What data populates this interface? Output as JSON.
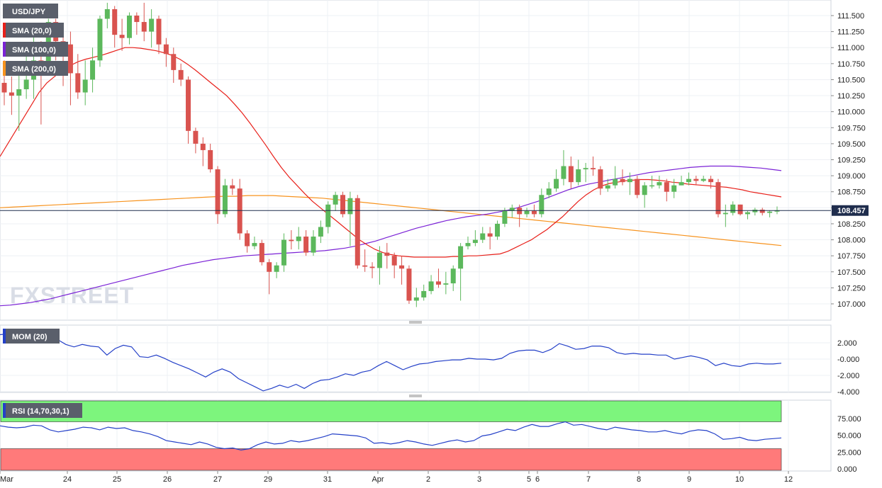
{
  "chart_data": [
    {
      "type": "candlestick",
      "title": "USD/JPY",
      "indicators": [
        "SMA (20,0)",
        "SMA (100,0)",
        "SMA (200,0)"
      ],
      "colors": {
        "up": "#5cb85c",
        "down": "#d9534f",
        "sma20": "#e8201a",
        "sma100": "#7b22d6",
        "sma200": "#f7931e",
        "price_line": "#1f2d4d"
      },
      "ylim": [
        106.85,
        111.65
      ],
      "yticks": [
        "111.500",
        "111.250",
        "111.000",
        "110.750",
        "110.500",
        "110.250",
        "110.000",
        "109.750",
        "109.500",
        "109.250",
        "109.000",
        "108.750",
        "108.500",
        "108.250",
        "108.000",
        "107.750",
        "107.500",
        "107.250",
        "107.000"
      ],
      "last_price": "108.457",
      "candles": [
        [
          110.45,
          110.3,
          110.8,
          110.1
        ],
        [
          110.3,
          110.25,
          110.55,
          109.95
        ],
        [
          110.25,
          110.35,
          110.7,
          109.7
        ],
        [
          110.35,
          110.5,
          110.9,
          110.2
        ],
        [
          110.5,
          110.8,
          111.2,
          110.2
        ],
        [
          110.8,
          110.75,
          111.1,
          109.8
        ],
        [
          110.75,
          111.4,
          111.45,
          110.6
        ],
        [
          111.4,
          111.1,
          111.45,
          110.8
        ],
        [
          111.1,
          111.05,
          111.35,
          110.4
        ],
        [
          111.05,
          110.6,
          111.25,
          110.1
        ],
        [
          110.6,
          110.3,
          110.9,
          110.2
        ],
        [
          110.3,
          110.5,
          110.8,
          110.1
        ],
        [
          110.5,
          110.8,
          111.0,
          110.3
        ],
        [
          110.8,
          111.45,
          111.5,
          110.7
        ],
        [
          111.45,
          111.6,
          111.7,
          111.3
        ],
        [
          111.6,
          111.2,
          111.65,
          111.0
        ],
        [
          111.2,
          111.15,
          111.45,
          110.95
        ],
        [
          111.15,
          111.5,
          111.55,
          111.05
        ],
        [
          111.5,
          111.4,
          111.55,
          111.2
        ],
        [
          111.4,
          111.25,
          111.7,
          111.1
        ],
        [
          111.25,
          111.45,
          111.6,
          111.0
        ],
        [
          111.45,
          111.05,
          111.5,
          110.9
        ],
        [
          111.05,
          110.9,
          111.15,
          110.7
        ],
        [
          110.9,
          110.65,
          111.0,
          110.45
        ],
        [
          110.65,
          110.5,
          110.75,
          110.4
        ],
        [
          110.5,
          109.7,
          110.55,
          109.5
        ],
        [
          109.7,
          109.5,
          109.75,
          109.35
        ],
        [
          109.5,
          109.4,
          109.6,
          109.15
        ],
        [
          109.4,
          109.1,
          109.5,
          109.05
        ],
        [
          109.1,
          108.4,
          109.15,
          108.25
        ],
        [
          108.4,
          108.85,
          108.95,
          108.35
        ],
        [
          108.85,
          108.8,
          108.95,
          108.7
        ],
        [
          108.8,
          108.1,
          108.95,
          108.0
        ],
        [
          108.1,
          107.9,
          108.15,
          107.8
        ],
        [
          107.9,
          107.95,
          108.05,
          107.85
        ],
        [
          107.95,
          107.65,
          108.0,
          107.6
        ],
        [
          107.65,
          107.5,
          107.7,
          107.15
        ],
        [
          107.5,
          107.6,
          107.65,
          107.4
        ],
        [
          107.6,
          108.0,
          108.1,
          107.5
        ],
        [
          108.0,
          107.98,
          108.15,
          107.85
        ],
        [
          107.98,
          108.05,
          108.2,
          107.85
        ],
        [
          108.05,
          107.8,
          108.15,
          107.75
        ],
        [
          107.8,
          108.05,
          108.15,
          107.75
        ],
        [
          108.05,
          108.2,
          108.3,
          107.95
        ],
        [
          108.2,
          108.55,
          108.6,
          108.1
        ],
        [
          108.55,
          108.7,
          108.75,
          108.45
        ],
        [
          108.7,
          108.4,
          108.75,
          108.35
        ],
        [
          108.4,
          108.65,
          108.75,
          107.9
        ],
        [
          108.65,
          107.6,
          108.7,
          107.55
        ],
        [
          107.6,
          107.58,
          107.85,
          107.5
        ],
        [
          107.58,
          107.56,
          107.65,
          107.4
        ],
        [
          107.56,
          107.8,
          107.9,
          107.3
        ],
        [
          107.8,
          107.75,
          107.95,
          107.55
        ],
        [
          107.75,
          107.6,
          107.8,
          107.4
        ],
        [
          107.6,
          107.55,
          107.75,
          107.3
        ],
        [
          107.55,
          107.05,
          107.6,
          107.0
        ],
        [
          107.05,
          107.1,
          107.25,
          106.95
        ],
        [
          107.1,
          107.2,
          107.3,
          107.05
        ],
        [
          107.2,
          107.35,
          107.45,
          107.15
        ],
        [
          107.35,
          107.3,
          107.55,
          107.25
        ],
        [
          107.3,
          107.32,
          107.5,
          107.15
        ],
        [
          107.32,
          107.55,
          107.6,
          107.2
        ],
        [
          107.55,
          107.9,
          107.95,
          107.05
        ],
        [
          107.9,
          107.95,
          108.05,
          107.85
        ],
        [
          107.95,
          108.0,
          108.15,
          107.9
        ],
        [
          108.0,
          108.1,
          108.2,
          107.95
        ],
        [
          108.1,
          108.05,
          108.2,
          107.85
        ],
        [
          108.05,
          108.25,
          108.3,
          108.0
        ],
        [
          108.25,
          108.45,
          108.5,
          108.2
        ],
        [
          108.45,
          108.5,
          108.55,
          108.35
        ],
        [
          108.5,
          108.4,
          108.55,
          108.2
        ],
        [
          108.4,
          108.45,
          108.5,
          108.35
        ],
        [
          108.45,
          108.4,
          108.55,
          108.35
        ],
        [
          108.4,
          108.7,
          108.8,
          108.35
        ],
        [
          108.7,
          108.8,
          108.9,
          108.65
        ],
        [
          108.8,
          108.95,
          109.1,
          108.75
        ],
        [
          108.95,
          109.15,
          109.4,
          108.85
        ],
        [
          109.15,
          108.9,
          109.3,
          108.8
        ],
        [
          108.9,
          109.1,
          109.25,
          108.85
        ],
        [
          109.1,
          109.12,
          109.2,
          108.9
        ],
        [
          109.12,
          109.1,
          109.3,
          109.0
        ],
        [
          109.1,
          108.8,
          109.15,
          108.7
        ],
        [
          108.8,
          108.85,
          108.95,
          108.75
        ],
        [
          108.85,
          108.95,
          109.15,
          108.8
        ],
        [
          108.95,
          108.9,
          109.1,
          108.85
        ],
        [
          108.9,
          108.95,
          109.05,
          108.7
        ],
        [
          108.95,
          108.7,
          109.0,
          108.65
        ],
        [
          108.7,
          108.85,
          108.9,
          108.5
        ],
        [
          108.85,
          108.85,
          109.0,
          108.8
        ],
        [
          108.85,
          108.9,
          109.0,
          108.8
        ],
        [
          108.9,
          108.75,
          108.95,
          108.6
        ],
        [
          108.75,
          108.85,
          108.95,
          108.65
        ],
        [
          108.85,
          108.9,
          109.0,
          108.85
        ],
        [
          108.9,
          108.95,
          109.05,
          108.85
        ],
        [
          108.95,
          108.92,
          109.0,
          108.85
        ],
        [
          108.92,
          108.95,
          109.0,
          108.9
        ],
        [
          108.95,
          108.9,
          109.0,
          108.8
        ],
        [
          108.9,
          108.4,
          108.95,
          108.35
        ],
        [
          108.4,
          108.42,
          108.55,
          108.2
        ],
        [
          108.42,
          108.55,
          108.6,
          108.38
        ],
        [
          108.55,
          108.4,
          108.55,
          108.38
        ],
        [
          108.4,
          108.43,
          108.45,
          108.32
        ],
        [
          108.43,
          108.47,
          108.5,
          108.38
        ],
        [
          108.47,
          108.42,
          108.5,
          108.38
        ],
        [
          108.42,
          108.44,
          108.46,
          108.35
        ],
        [
          108.44,
          108.46,
          108.52,
          108.4
        ]
      ],
      "sma20": [
        109.3,
        109.5,
        109.7,
        109.9,
        110.1,
        110.3,
        110.45,
        110.55,
        110.65,
        110.72,
        110.78,
        110.82,
        110.85,
        110.88,
        110.92,
        110.96,
        111.0,
        111.0,
        110.99,
        110.97,
        110.95,
        110.92,
        110.88,
        110.82,
        110.74,
        110.65,
        110.55,
        110.45,
        110.35,
        110.25,
        110.12,
        109.98,
        109.82,
        109.65,
        109.48,
        109.3,
        109.13,
        108.98,
        108.85,
        108.72,
        108.6,
        108.5,
        108.4,
        108.3,
        108.2,
        108.1,
        108.0,
        107.92,
        107.85,
        107.8,
        107.77,
        107.75,
        107.74,
        107.73,
        107.73,
        107.73,
        107.73,
        107.73,
        107.74,
        107.74,
        107.75,
        107.75,
        107.76,
        107.77,
        107.78,
        107.82,
        107.88,
        107.94,
        108.0,
        108.08,
        108.16,
        108.26,
        108.36,
        108.48,
        108.6,
        108.7,
        108.78,
        108.84,
        108.88,
        108.9,
        108.92,
        108.93,
        108.94,
        108.94,
        108.93,
        108.92,
        108.9,
        108.89,
        108.87,
        108.86,
        108.85,
        108.84,
        108.83,
        108.82,
        108.8,
        108.78,
        108.75,
        108.73,
        108.71,
        108.69,
        108.67
      ],
      "sma100": [
        106.97,
        106.98,
        107.0,
        107.02,
        107.05,
        107.08,
        107.12,
        107.16,
        107.2,
        107.24,
        107.28,
        107.32,
        107.36,
        107.4,
        107.44,
        107.48,
        107.52,
        107.56,
        107.6,
        107.63,
        107.66,
        107.69,
        107.71,
        107.73,
        107.75,
        107.76,
        107.77,
        107.78,
        107.79,
        107.8,
        107.81,
        107.82,
        107.83,
        107.85,
        107.87,
        107.9,
        107.94,
        107.98,
        108.03,
        108.08,
        108.13,
        108.18,
        108.22,
        108.26,
        108.3,
        108.33,
        108.36,
        108.38,
        108.4,
        108.43,
        108.46,
        108.5,
        108.55,
        108.6,
        108.66,
        108.72,
        108.78,
        108.83,
        108.87,
        108.9,
        108.93,
        108.96,
        108.99,
        109.02,
        109.05,
        109.07,
        109.09,
        109.11,
        109.13,
        109.14,
        109.15,
        109.15,
        109.15,
        109.14,
        109.13,
        109.12,
        109.1,
        109.08
      ],
      "sma200": [
        108.5,
        108.51,
        108.52,
        108.53,
        108.54,
        108.55,
        108.56,
        108.57,
        108.58,
        108.59,
        108.6,
        108.61,
        108.62,
        108.63,
        108.64,
        108.65,
        108.66,
        108.67,
        108.68,
        108.68,
        108.69,
        108.69,
        108.69,
        108.68,
        108.67,
        108.66,
        108.65,
        108.63,
        108.61,
        108.59,
        108.57,
        108.55,
        108.53,
        108.51,
        108.49,
        108.47,
        108.45,
        108.43,
        108.41,
        108.39,
        108.37,
        108.35,
        108.33,
        108.31,
        108.29,
        108.27,
        108.25,
        108.23,
        108.21,
        108.19,
        108.17,
        108.15,
        108.13,
        108.11,
        108.09,
        108.07,
        108.05,
        108.03,
        108.01,
        107.99,
        107.97,
        107.95,
        107.93,
        107.91
      ]
    },
    {
      "type": "line",
      "title": "MOM (20)",
      "ylim": [
        -4.3,
        3.0
      ],
      "yticks": [
        "2.000",
        "-0.000",
        "-2.000",
        "-4.000"
      ],
      "color": "#2440c8",
      "values": [
        3.0,
        3.1,
        3.0,
        2.7,
        3.1,
        3.4,
        2.9,
        2.4,
        1.8,
        1.5,
        1.8,
        1.6,
        1.5,
        0.5,
        1.3,
        1.7,
        1.5,
        0.3,
        0.2,
        0.5,
        0.1,
        -0.4,
        -0.8,
        -1.2,
        -1.7,
        -2.2,
        -1.6,
        -1.2,
        -1.6,
        -2.4,
        -2.9,
        -3.4,
        -3.9,
        -3.6,
        -3.2,
        -3.5,
        -3.1,
        -3.6,
        -3.0,
        -2.6,
        -2.5,
        -2.2,
        -1.8,
        -2.0,
        -1.6,
        -1.4,
        -0.8,
        -0.3,
        -0.8,
        -1.3,
        -0.9,
        -0.6,
        -0.5,
        -0.3,
        -0.2,
        -0.1,
        -0.1,
        0.1,
        0.0,
        0.0,
        -0.1,
        0.1,
        0.7,
        1.0,
        1.1,
        1.1,
        0.8,
        1.2,
        1.9,
        1.6,
        1.2,
        1.3,
        1.6,
        1.6,
        1.4,
        0.8,
        0.6,
        0.7,
        0.6,
        0.6,
        0.5,
        0.5,
        0.0,
        0.2,
        0.4,
        0.2,
        -0.1,
        -0.8,
        -0.5,
        -0.8,
        -0.9,
        -0.6,
        -0.5,
        -0.6,
        -0.6,
        -0.5
      ],
      "x_end": 1102
    },
    {
      "type": "line",
      "title": "RSI (14,70,30,1)",
      "ylim": [
        0,
        100
      ],
      "yticks": [
        "75.000",
        "50.000",
        "25.000",
        "0.000"
      ],
      "overbought": 70,
      "oversold": 30,
      "color": "#2440c8",
      "values": [
        64,
        62,
        61,
        62,
        65,
        64,
        58,
        55,
        57,
        59,
        62,
        61,
        58,
        62,
        60,
        61,
        57,
        55,
        52,
        48,
        42,
        40,
        38,
        36,
        40,
        37,
        32,
        30,
        31,
        28,
        30,
        36,
        40,
        37,
        38,
        42,
        40,
        42,
        45,
        48,
        52,
        51,
        50,
        49,
        46,
        38,
        39,
        37,
        39,
        42,
        40,
        37,
        35,
        38,
        41,
        43,
        40,
        42,
        49,
        51,
        55,
        59,
        57,
        62,
        66,
        63,
        63,
        67,
        70,
        65,
        66,
        63,
        60,
        58,
        62,
        60,
        58,
        57,
        55,
        55,
        57,
        54,
        52,
        56,
        58,
        57,
        52,
        44,
        45,
        47,
        43,
        42,
        44,
        45,
        46
      ],
      "x_end": 1102
    }
  ],
  "x_axis": {
    "labels": [
      "Mar",
      "24",
      "25",
      "26",
      "27",
      "29",
      "31",
      "Apr",
      "2",
      "3",
      "5",
      "6",
      "7",
      "8",
      "9",
      "10",
      "12"
    ]
  },
  "watermark": "FXSTREET"
}
